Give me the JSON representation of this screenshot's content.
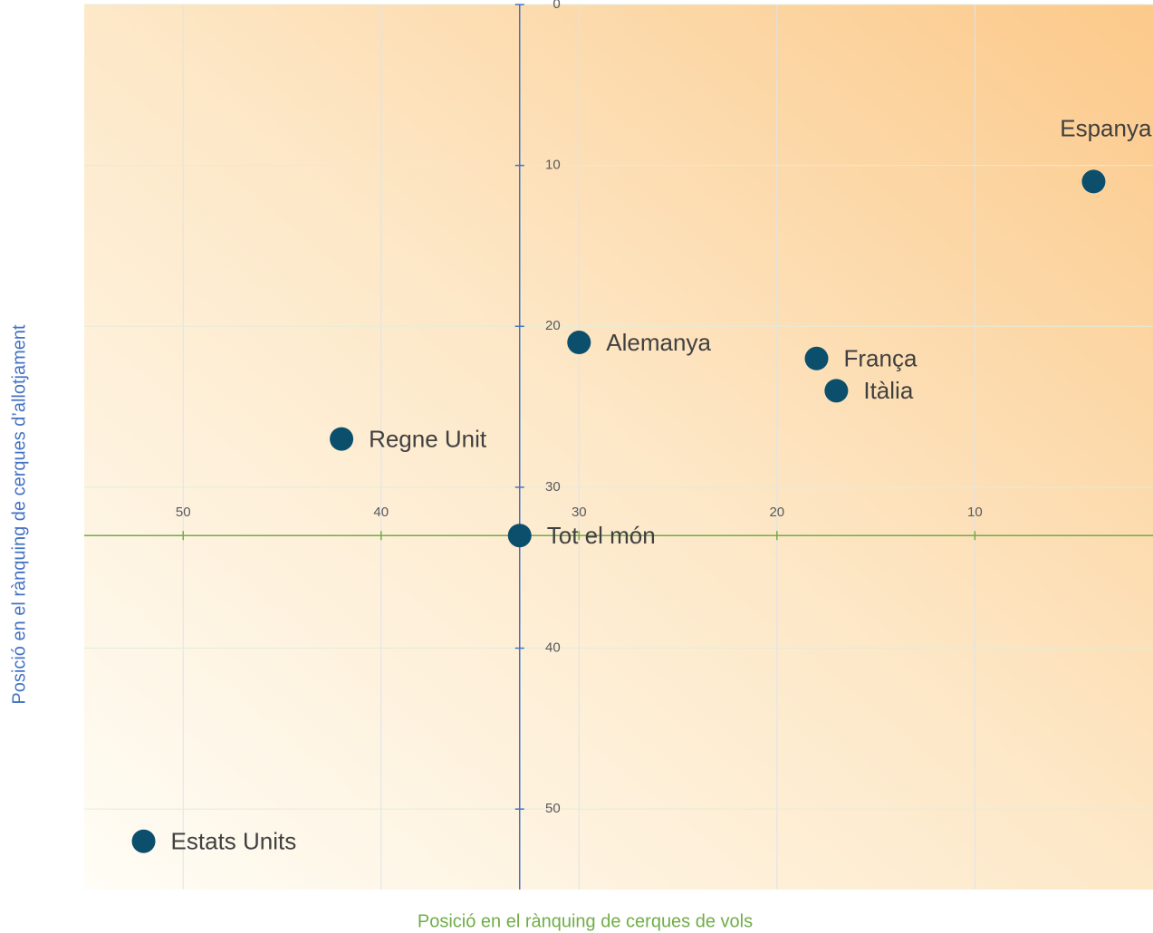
{
  "chart_data": {
    "type": "scatter",
    "x_label": "Posició en el rànquing de cerques de vols",
    "y_label": "Posició en el rànquing de cerques d’allotjament",
    "series": [
      {
        "color": "#0b4f6c",
        "labels": [
          "Espanya",
          "Alemanya",
          "França",
          "Itàlia",
          "Regne Unit",
          "Tot el món",
          "Estats Units"
        ],
        "label_positions": [
          "above",
          "right",
          "right",
          "right",
          "right",
          "right",
          "right"
        ],
        "x": [
          4,
          30,
          18,
          17,
          42,
          33,
          52
        ],
        "values": [
          11,
          21,
          22,
          24,
          27,
          33,
          52
        ]
      }
    ],
    "xlim": [
      55,
      1
    ],
    "ylim": [
      0,
      55
    ],
    "xticks": [
      50,
      40,
      30,
      20,
      10
    ],
    "yticks": [
      0,
      10,
      20,
      30,
      40,
      50
    ],
    "x_axis_crosses_y_at": 33,
    "y_axis_crosses_x_at": 33,
    "x_axis_color": "#70ad47",
    "y_axis_color": "#4472c4",
    "grid": true
  }
}
